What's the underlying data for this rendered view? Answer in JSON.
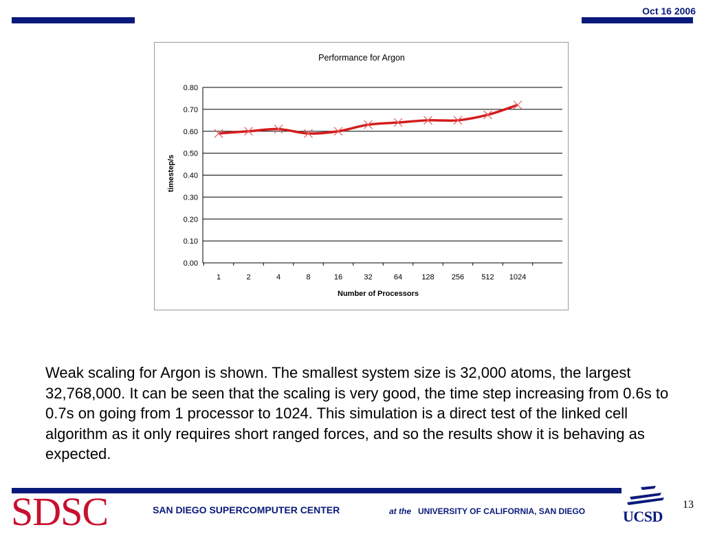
{
  "slide": {
    "date": "Oct 16 2006",
    "caption": "Weak scaling for Argon is shown. The smallest system size is 32,000 atoms, the largest 32,768,000. It can be seen that the scaling is very good, the time step increasing from 0.6s to 0.7s on going from 1 processor to 1024. This simulation is a direct test of the linked cell algorithm as it only requires short ranged forces, and so the results show it is behaving as expected.",
    "page_number": "13"
  },
  "footer": {
    "logo_text": "SDSC",
    "center_name": "SAN DIEGO SUPERCOMPUTER CENTER",
    "at_the": "at the",
    "university": "UNIVERSITY OF CALIFORNIA, SAN DIEGO",
    "ucsd_logo_text": "UCSD"
  },
  "colors": {
    "brand_navy": "#0a1a7a",
    "sdsc_red": "#c8102e",
    "series_line": "#d41c1c",
    "marker": "#e06060"
  },
  "chart_data": {
    "type": "line",
    "title": "Performance for Argon",
    "xlabel": "Number of Processors",
    "ylabel": "timestep/s",
    "categories": [
      "1",
      "2",
      "4",
      "8",
      "16",
      "32",
      "64",
      "128",
      "256",
      "512",
      "1024"
    ],
    "series": [
      {
        "values": [
          0.59,
          0.6,
          0.61,
          0.59,
          0.6,
          0.63,
          0.64,
          0.65,
          0.65,
          0.675,
          0.72
        ]
      }
    ],
    "ylim": [
      0,
      0.8
    ],
    "yticks": [
      "0.00",
      "0.10",
      "0.20",
      "0.30",
      "0.40",
      "0.50",
      "0.60",
      "0.70",
      "0.80"
    ],
    "grid": true,
    "legend": "none"
  }
}
